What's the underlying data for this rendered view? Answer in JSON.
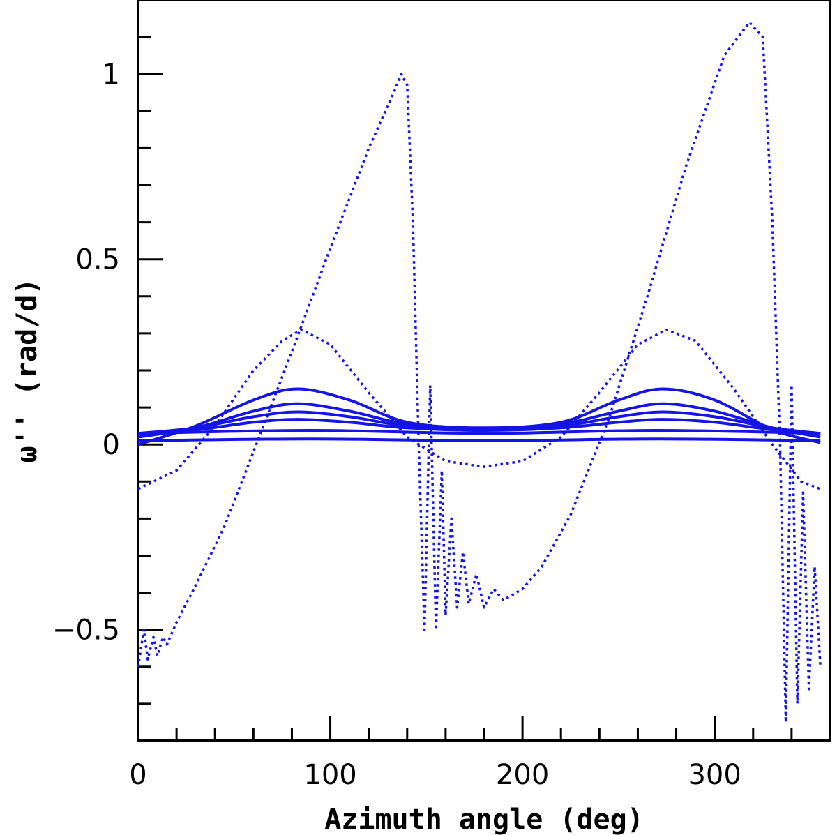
{
  "chart_data": {
    "type": "line",
    "title": "",
    "xlabel": "Azimuth angle (deg)",
    "ylabel": "ω'' (rad/d)",
    "xlim": [
      0,
      360
    ],
    "ylim": [
      -0.8,
      1.2
    ],
    "x_major_ticks": [
      0,
      100,
      200,
      300
    ],
    "x_tick_labels": [
      "0",
      "100",
      "200",
      "300"
    ],
    "x_minor_step": 20,
    "y_major_ticks": [
      -0.5,
      0,
      0.5,
      1
    ],
    "y_tick_labels": [
      "−0.5",
      "0",
      "0.5",
      "1"
    ],
    "y_minor_step": 0.1,
    "grid": false,
    "legend": "none",
    "series_color": "#1414e6",
    "series": [
      {
        "name": "solid-1",
        "style": "solid",
        "x": [
          0,
          30,
          60,
          83,
          110,
          140,
          180,
          220,
          250,
          273,
          300,
          330,
          355
        ],
        "values": [
          0.0,
          0.05,
          0.12,
          0.15,
          0.12,
          0.06,
          0.045,
          0.06,
          0.12,
          0.15,
          0.12,
          0.04,
          0.005
        ]
      },
      {
        "name": "solid-2",
        "style": "solid",
        "x": [
          0,
          30,
          60,
          83,
          110,
          140,
          180,
          220,
          250,
          273,
          300,
          330,
          355
        ],
        "values": [
          0.02,
          0.045,
          0.09,
          0.11,
          0.09,
          0.055,
          0.04,
          0.055,
          0.09,
          0.11,
          0.09,
          0.045,
          0.02
        ]
      },
      {
        "name": "solid-3",
        "style": "solid",
        "x": [
          0,
          30,
          60,
          83,
          110,
          140,
          180,
          220,
          250,
          273,
          300,
          330,
          355
        ],
        "values": [
          0.03,
          0.045,
          0.075,
          0.088,
          0.075,
          0.05,
          0.04,
          0.05,
          0.075,
          0.088,
          0.075,
          0.045,
          0.03
        ]
      },
      {
        "name": "solid-4",
        "style": "solid",
        "x": [
          0,
          30,
          60,
          83,
          110,
          140,
          180,
          220,
          250,
          273,
          300,
          330,
          355
        ],
        "values": [
          0.03,
          0.04,
          0.06,
          0.068,
          0.06,
          0.045,
          0.038,
          0.045,
          0.06,
          0.068,
          0.06,
          0.04,
          0.03
        ]
      },
      {
        "name": "solid-5",
        "style": "solid",
        "x": [
          0,
          90,
          180,
          270,
          355
        ],
        "values": [
          0.03,
          0.038,
          0.03,
          0.038,
          0.03
        ]
      },
      {
        "name": "solid-6",
        "style": "solid",
        "x": [
          0,
          90,
          180,
          270,
          355
        ],
        "values": [
          0.01,
          0.015,
          0.01,
          0.015,
          0.01
        ]
      },
      {
        "name": "dotted-1",
        "style": "dotted",
        "x": [
          0,
          20,
          40,
          60,
          75,
          85,
          100,
          120,
          140,
          160,
          180,
          200,
          220,
          240,
          260,
          275,
          290,
          310,
          330,
          345,
          355
        ],
        "values": [
          -0.12,
          -0.07,
          0.05,
          0.2,
          0.28,
          0.31,
          0.27,
          0.14,
          0.02,
          -0.045,
          -0.06,
          -0.045,
          0.02,
          0.14,
          0.27,
          0.31,
          0.28,
          0.15,
          0.0,
          -0.1,
          -0.12
        ]
      },
      {
        "name": "dotted-2",
        "style": "dotted",
        "x": [
          0,
          3,
          5,
          8,
          10,
          13,
          15,
          20,
          30,
          45,
          60,
          80,
          100,
          120,
          133,
          137,
          140,
          143,
          146,
          149,
          152,
          155,
          158,
          160,
          163,
          166,
          169,
          172,
          176,
          180,
          185,
          190,
          200,
          210,
          225,
          245,
          265,
          285,
          305,
          318,
          325,
          330,
          334,
          337,
          340,
          343,
          346,
          349,
          352,
          355
        ],
        "values": [
          -0.6,
          -0.5,
          -0.58,
          -0.52,
          -0.57,
          -0.52,
          -0.54,
          -0.48,
          -0.38,
          -0.22,
          -0.02,
          0.25,
          0.53,
          0.8,
          0.95,
          1.0,
          0.97,
          0.6,
          0.0,
          -0.5,
          0.16,
          -0.5,
          -0.07,
          -0.46,
          -0.2,
          -0.44,
          -0.29,
          -0.43,
          -0.35,
          -0.44,
          -0.39,
          -0.42,
          -0.39,
          -0.33,
          -0.19,
          0.07,
          0.4,
          0.75,
          1.05,
          1.14,
          1.1,
          0.6,
          0.0,
          -0.75,
          0.16,
          -0.7,
          -0.13,
          -0.66,
          -0.33,
          -0.6
        ]
      }
    ]
  }
}
